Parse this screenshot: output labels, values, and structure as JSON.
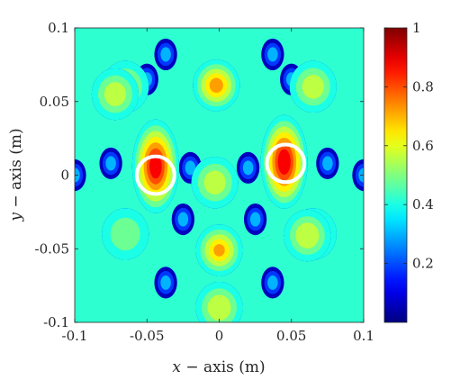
{
  "chart_data": {
    "type": "heatmap",
    "title": "",
    "xlabel_var": "x",
    "xlabel_rest": " − axis (m)",
    "ylabel_var": "y",
    "ylabel_rest": " − axis (m)",
    "xlim": [
      -0.1,
      0.1
    ],
    "ylim": [
      -0.1,
      0.1
    ],
    "xticks": [
      -0.1,
      -0.05,
      0,
      0.05,
      0.1
    ],
    "xtick_labels": [
      "-0.1",
      "-0.05",
      "0",
      "0.05",
      "0.1"
    ],
    "yticks": [
      -0.1,
      -0.05,
      0,
      0.05,
      0.1
    ],
    "ytick_labels": [
      "-0.1",
      "-0.05",
      "0",
      "0.05",
      "0.1"
    ],
    "colormap": "jet",
    "color_limits": [
      0,
      1
    ],
    "colorbar_ticks": [
      0.2,
      0.4,
      0.6,
      0.8,
      1
    ],
    "colorbar_tick_labels": [
      "0.2",
      "0.4",
      "0.6",
      "0.8",
      "1"
    ],
    "grid": false,
    "field_peaks": [
      {
        "x": -0.044,
        "y": 0.006,
        "value": 0.95
      },
      {
        "x": 0.045,
        "y": 0.009,
        "value": 0.96
      },
      {
        "x": -0.002,
        "y": 0.061,
        "value": 0.75
      },
      {
        "x": 0.0,
        "y": -0.051,
        "value": 0.72
      },
      {
        "x": 0.0,
        "y": -0.09,
        "value": 0.62
      },
      {
        "x": -0.003,
        "y": -0.005,
        "value": 0.6
      },
      {
        "x": 0.065,
        "y": 0.06,
        "value": 0.6
      },
      {
        "x": -0.065,
        "y": 0.06,
        "value": 0.58
      },
      {
        "x": 0.065,
        "y": -0.04,
        "value": 0.55
      },
      {
        "x": -0.065,
        "y": -0.04,
        "value": 0.52
      },
      {
        "x": -0.072,
        "y": 0.055,
        "value": 0.6
      },
      {
        "x": 0.061,
        "y": -0.041,
        "value": 0.62
      }
    ],
    "field_minima": [
      {
        "x": -0.037,
        "y": 0.082
      },
      {
        "x": 0.037,
        "y": 0.082
      },
      {
        "x": -0.037,
        "y": -0.073
      },
      {
        "x": 0.037,
        "y": -0.073
      },
      {
        "x": -0.075,
        "y": 0.008
      },
      {
        "x": 0.075,
        "y": 0.008
      },
      {
        "x": -0.02,
        "y": 0.005
      },
      {
        "x": 0.02,
        "y": 0.005
      },
      {
        "x": -0.025,
        "y": -0.03
      },
      {
        "x": 0.025,
        "y": -0.03
      },
      {
        "x": -0.05,
        "y": 0.065
      },
      {
        "x": 0.05,
        "y": 0.065
      },
      {
        "x": -0.1,
        "y": 0.0
      },
      {
        "x": 0.1,
        "y": 0.0
      }
    ],
    "markers": [
      {
        "shape": "circle",
        "x": -0.044,
        "y": 0.0,
        "r": 0.013,
        "color": "#ffffff"
      },
      {
        "shape": "circle",
        "x": 0.046,
        "y": 0.008,
        "r": 0.013,
        "color": "#ffffff"
      }
    ]
  }
}
